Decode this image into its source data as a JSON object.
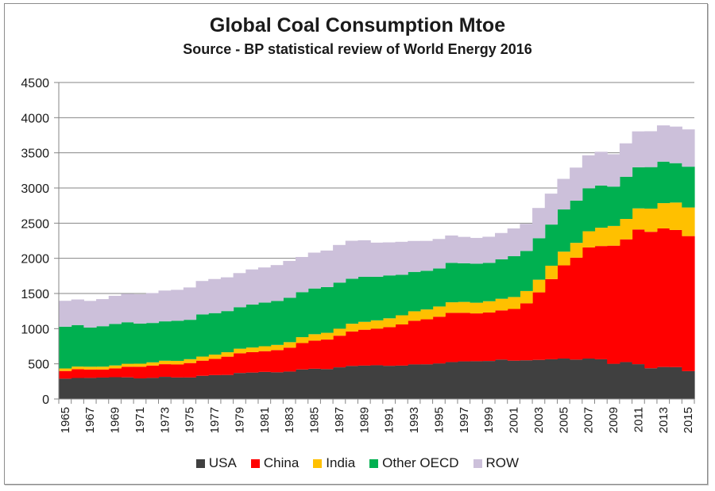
{
  "chart_data": {
    "type": "area",
    "stacked": true,
    "step": true,
    "title": "Global Coal Consumption Mtoe",
    "subtitle": "Source - BP statistical review of World Energy 2016",
    "xlabel": "",
    "ylabel": "",
    "ylim": [
      0,
      4500
    ],
    "yticks": [
      0,
      500,
      1000,
      1500,
      2000,
      2500,
      3000,
      3500,
      4000,
      4500
    ],
    "grid": true,
    "legend_position": "bottom",
    "x": [
      1965,
      1966,
      1967,
      1968,
      1969,
      1970,
      1971,
      1972,
      1973,
      1974,
      1975,
      1976,
      1977,
      1978,
      1979,
      1980,
      1981,
      1982,
      1983,
      1984,
      1985,
      1986,
      1987,
      1988,
      1989,
      1990,
      1991,
      1992,
      1993,
      1994,
      1995,
      1996,
      1997,
      1998,
      1999,
      2000,
      2001,
      2002,
      2003,
      2004,
      2005,
      2006,
      2007,
      2008,
      2009,
      2010,
      2011,
      2012,
      2013,
      2014,
      2015
    ],
    "xtick_labels": [
      "1965",
      "1967",
      "1969",
      "1971",
      "1973",
      "1975",
      "1977",
      "1979",
      "1981",
      "1983",
      "1985",
      "1987",
      "1989",
      "1991",
      "1993",
      "1995",
      "1997",
      "1999",
      "2001",
      "2003",
      "2005",
      "2007",
      "2009",
      "2011",
      "2013",
      "2015"
    ],
    "series": [
      {
        "name": "USA",
        "color": "#404040",
        "values": [
          289,
          299,
          300,
          305,
          310,
          308,
          293,
          300,
          315,
          306,
          306,
          330,
          340,
          342,
          370,
          376,
          385,
          380,
          390,
          420,
          430,
          425,
          450,
          470,
          475,
          480,
          472,
          475,
          492,
          493,
          505,
          525,
          535,
          537,
          540,
          560,
          545,
          550,
          556,
          565,
          575,
          560,
          575,
          565,
          500,
          525,
          495,
          437,
          455,
          453,
          396
        ]
      },
      {
        "name": "China",
        "color": "#ff0000",
        "values": [
          109,
          125,
          120,
          115,
          125,
          150,
          165,
          175,
          180,
          185,
          205,
          215,
          230,
          260,
          280,
          290,
          295,
          315,
          340,
          375,
          400,
          420,
          450,
          490,
          510,
          520,
          550,
          585,
          620,
          640,
          665,
          700,
          690,
          680,
          690,
          700,
          735,
          810,
          960,
          1140,
          1325,
          1450,
          1580,
          1610,
          1680,
          1745,
          1915,
          1940,
          1970,
          1950,
          1920
        ]
      },
      {
        "name": "India",
        "color": "#ffc000",
        "values": [
          36,
          37,
          39,
          40,
          42,
          43,
          44,
          46,
          49,
          51,
          55,
          58,
          61,
          63,
          65,
          66,
          70,
          74,
          78,
          84,
          91,
          96,
          100,
          110,
          112,
          118,
          125,
          130,
          135,
          140,
          145,
          150,
          155,
          152,
          160,
          165,
          170,
          175,
          180,
          190,
          195,
          210,
          230,
          260,
          280,
          290,
          300,
          330,
          360,
          390,
          407
        ]
      },
      {
        "name": "Other OECD",
        "color": "#00b050",
        "values": [
          594,
          590,
          556,
          575,
          590,
          590,
          570,
          560,
          560,
          570,
          560,
          600,
          590,
          585,
          590,
          610,
          620,
          625,
          630,
          640,
          650,
          650,
          655,
          640,
          640,
          620,
          610,
          575,
          560,
          550,
          540,
          560,
          550,
          555,
          545,
          560,
          580,
          570,
          590,
          585,
          600,
          600,
          610,
          600,
          560,
          600,
          585,
          590,
          590,
          560,
          580
        ]
      },
      {
        "name": "ROW",
        "color": "#ccc0da",
        "values": [
          368,
          364,
          380,
          385,
          400,
          405,
          418,
          425,
          438,
          440,
          460,
          475,
          485,
          480,
          485,
          500,
          500,
          510,
          525,
          500,
          510,
          520,
          535,
          540,
          520,
          485,
          470,
          470,
          440,
          425,
          420,
          390,
          375,
          366,
          372,
          375,
          395,
          385,
          430,
          440,
          435,
          470,
          470,
          480,
          460,
          475,
          510,
          510,
          515,
          520,
          530
        ]
      }
    ]
  },
  "legend": [
    {
      "label": "USA",
      "color": "#404040"
    },
    {
      "label": "China",
      "color": "#ff0000"
    },
    {
      "label": "India",
      "color": "#ffc000"
    },
    {
      "label": "Other OECD",
      "color": "#00b050"
    },
    {
      "label": "ROW",
      "color": "#ccc0da"
    }
  ]
}
